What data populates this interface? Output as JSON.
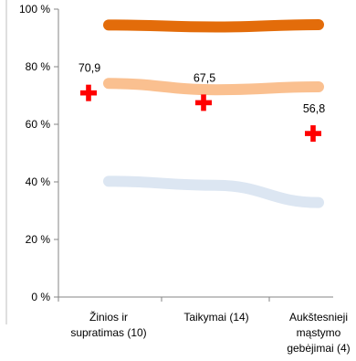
{
  "chart_data": {
    "type": "line",
    "title": "",
    "xlabel": "",
    "ylabel": "",
    "ylim": [
      0,
      100
    ],
    "y_ticks": [
      "0 %",
      "20 %",
      "40 %",
      "60 %",
      "80 %",
      "100 %"
    ],
    "y_tick_values": [
      0,
      20,
      40,
      60,
      80,
      100
    ],
    "categories": [
      [
        "Žinios ir",
        "supratimas (10)"
      ],
      [
        "Taikymai (14)"
      ],
      [
        "Aukštesnieji",
        "mąstymo",
        "gebėjimai (4)"
      ]
    ],
    "series": [
      {
        "color": "#E36C0A",
        "style": "thick-line",
        "values": [
          94.5,
          93.8,
          94.6
        ]
      },
      {
        "color": "#FAC090",
        "style": "thick-line",
        "values": [
          74.2,
          72.0,
          73.0
        ]
      },
      {
        "color": "#DCE6F2",
        "style": "thick-line",
        "values": [
          40.2,
          38.8,
          32.8
        ]
      },
      {
        "color": "#FF0000",
        "style": "cross-marker",
        "values": [
          70.9,
          67.5,
          56.8
        ],
        "data_labels": [
          "70,9",
          "67,5",
          "56,8"
        ]
      }
    ],
    "grid": false,
    "legend": "none"
  }
}
